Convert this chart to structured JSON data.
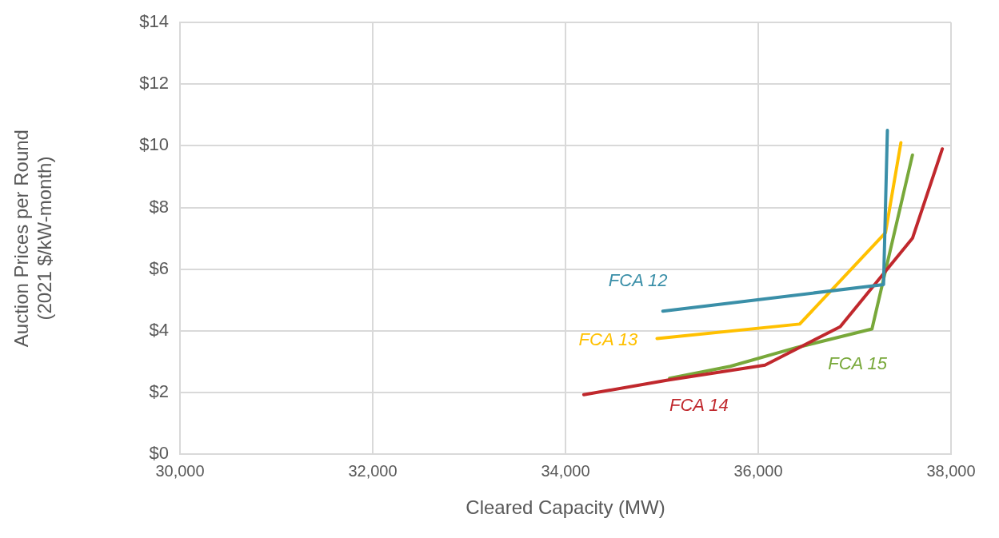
{
  "chart_data": {
    "type": "line",
    "xlabel": "Cleared Capacity (MW)",
    "ylabel": "Auction Prices per Round\n(2021 $/kW-month)",
    "xlim": [
      30000,
      38000
    ],
    "xticks": [
      {
        "value": 30000,
        "label": "30,000"
      },
      {
        "value": 32000,
        "label": "32,000"
      },
      {
        "value": 34000,
        "label": "34,000"
      },
      {
        "value": 36000,
        "label": "36,000"
      },
      {
        "value": 38000,
        "label": "38,000"
      }
    ],
    "ylim": [
      0,
      14
    ],
    "yticks": [
      {
        "value": 0,
        "label": "$0"
      },
      {
        "value": 2,
        "label": "$2"
      },
      {
        "value": 4,
        "label": "$4"
      },
      {
        "value": 6,
        "label": "$6"
      },
      {
        "value": 8,
        "label": "$8"
      },
      {
        "value": 10,
        "label": "$10"
      },
      {
        "value": 12,
        "label": "$12"
      },
      {
        "value": 14,
        "label": "$14"
      }
    ],
    "grid": true,
    "legend": false,
    "marker": "none",
    "line_style": "solid",
    "series": [
      {
        "name": "FCA 12",
        "color": "#3a8fa8",
        "x": [
          35010,
          37300,
          37340
        ],
        "values": [
          4.64,
          5.5,
          10.5
        ]
      },
      {
        "name": "FCA 13",
        "color": "#ffc000",
        "x": [
          34950,
          36430,
          37320,
          37480
        ],
        "values": [
          3.75,
          4.22,
          7.18,
          10.1
        ]
      },
      {
        "name": "FCA 14",
        "color": "#c0282d",
        "x": [
          34190,
          35060,
          36070,
          36850,
          37600,
          37910
        ],
        "values": [
          1.93,
          2.4,
          2.89,
          4.13,
          7.0,
          9.9
        ]
      },
      {
        "name": "FCA 15",
        "color": "#78a83a",
        "x": [
          35080,
          35710,
          36400,
          37180,
          37600
        ],
        "values": [
          2.46,
          2.85,
          3.46,
          4.06,
          9.7
        ]
      }
    ]
  }
}
